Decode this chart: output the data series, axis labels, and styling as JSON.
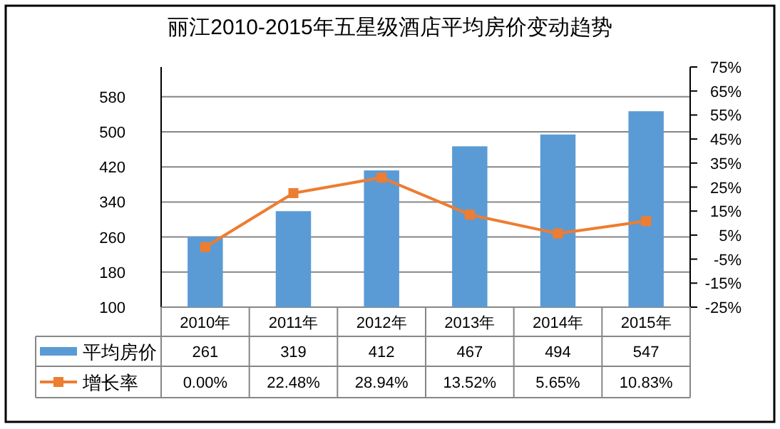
{
  "chart_data": {
    "type": "bar",
    "title": "丽江2010-2015年五星级酒店平均房价变动趋势",
    "categories": [
      "2010年",
      "2011年",
      "2012年",
      "2013年",
      "2014年",
      "2015年"
    ],
    "series": [
      {
        "name": "平均房价",
        "color": "#5b9bd5",
        "values": [
          261,
          319,
          412,
          467,
          494,
          547
        ]
      },
      {
        "name": "增长率",
        "type": "line",
        "axis": "y2",
        "color": "#ed7d31",
        "marker": "square",
        "values": [
          0.0,
          22.48,
          28.94,
          13.52,
          5.65,
          10.83
        ],
        "value_labels": [
          "0.00%",
          "22.48%",
          "28.94%",
          "13.52%",
          "5.65%",
          "10.83%"
        ]
      }
    ],
    "data_labels": true,
    "ylim": [
      100,
      648
    ],
    "yticks": [
      100,
      180,
      260,
      340,
      420,
      500,
      580
    ],
    "y2lim": [
      -25,
      75
    ],
    "y2ticks": [
      {
        "value": -25,
        "label": "-25%"
      },
      {
        "value": -15,
        "label": "-15%"
      },
      {
        "value": -5,
        "label": "-5%"
      },
      {
        "value": 5,
        "label": "5%"
      },
      {
        "value": 15,
        "label": "15%"
      },
      {
        "value": 25,
        "label": "25%"
      },
      {
        "value": 35,
        "label": "35%"
      },
      {
        "value": 45,
        "label": "45%"
      },
      {
        "value": 55,
        "label": "55%"
      },
      {
        "value": 65,
        "label": "65%"
      },
      {
        "value": 75,
        "label": "75%"
      }
    ],
    "grid": "y",
    "legend": "bottom left"
  }
}
